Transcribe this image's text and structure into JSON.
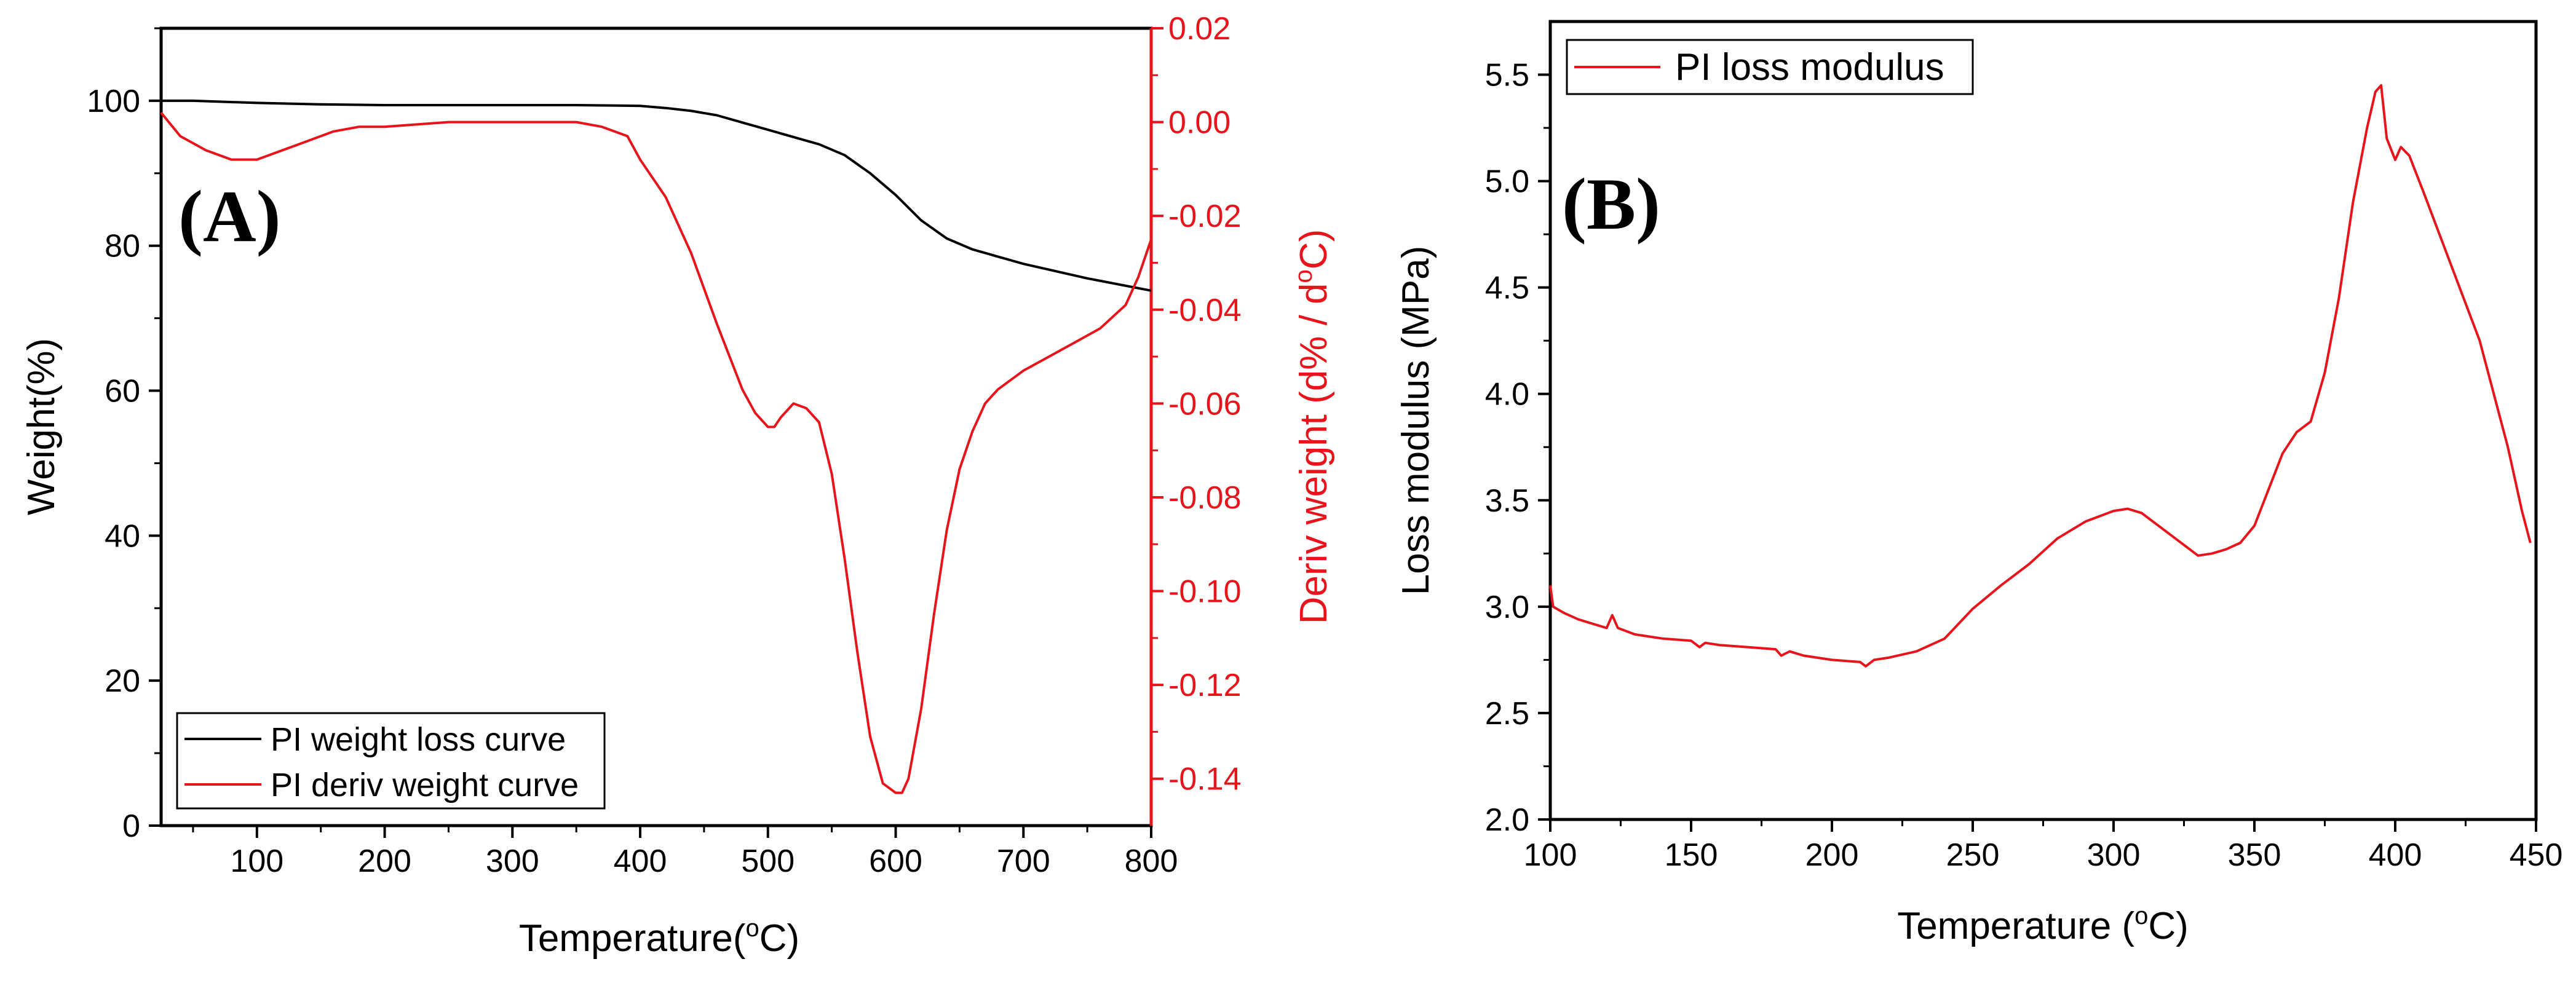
{
  "colors": {
    "weight": "#000000",
    "deriv": "#e8141b",
    "loss": "#e8141b",
    "axis_black": "#000000",
    "axis_red": "#e8141b"
  },
  "chart_data": [
    {
      "id": "A",
      "panel_label": "(A)",
      "type": "line",
      "xlabel": "Temperature(",
      "xlabel_sup": "o",
      "xlabel_suffix": "C)",
      "xlim": [
        25,
        800
      ],
      "xticks": [
        100,
        200,
        300,
        400,
        500,
        600,
        700,
        800
      ],
      "xtick_labels": [
        "100",
        "200",
        "300",
        "400",
        "500",
        "600",
        "700",
        "800"
      ],
      "ylabel": "Weight(%)",
      "ylim": [
        0,
        110
      ],
      "yticks": [
        0,
        20,
        40,
        60,
        80,
        100
      ],
      "ytick_labels": [
        "0",
        "20",
        "40",
        "60",
        "80",
        "100"
      ],
      "y2label": "Deriv weight (d% / d",
      "y2label_sup": "o",
      "y2label_suffix": "C)",
      "y2lim": [
        -0.15,
        0.02
      ],
      "y2ticks": [
        0.02,
        0,
        -0.02,
        -0.04,
        -0.06,
        -0.08,
        -0.1,
        -0.12,
        -0.14
      ],
      "y2tick_labels": [
        "0.02",
        "0.00",
        "-0.02",
        "-0.04",
        "-0.06",
        "-0.08",
        "-0.10",
        "-0.12",
        "-0.14"
      ],
      "legend_position": "bottom-left",
      "series": [
        {
          "name": "PI weight loss curve",
          "axis": "left",
          "color": "#000000",
          "x": [
            25,
            50,
            100,
            150,
            200,
            250,
            300,
            350,
            400,
            420,
            440,
            460,
            480,
            500,
            520,
            540,
            560,
            580,
            600,
            620,
            640,
            660,
            680,
            700,
            750,
            800
          ],
          "y": [
            100,
            100,
            99.7,
            99.5,
            99.4,
            99.4,
            99.4,
            99.4,
            99.3,
            99.0,
            98.6,
            98.0,
            97.0,
            96.0,
            95.0,
            94.0,
            92.5,
            90.0,
            87.0,
            83.5,
            81.0,
            79.5,
            78.5,
            77.5,
            75.5,
            73.8
          ]
        },
        {
          "name": "PI deriv weight curve",
          "axis": "right",
          "color": "#e8141b",
          "x": [
            25,
            40,
            60,
            80,
            100,
            120,
            140,
            160,
            180,
            200,
            250,
            300,
            350,
            370,
            390,
            400,
            420,
            440,
            460,
            480,
            490,
            500,
            505,
            510,
            520,
            530,
            540,
            550,
            560,
            570,
            580,
            590,
            600,
            605,
            610,
            620,
            630,
            640,
            650,
            660,
            670,
            680,
            690,
            700,
            720,
            740,
            760,
            780,
            790,
            800
          ],
          "y": [
            0.002,
            -0.003,
            -0.006,
            -0.008,
            -0.008,
            -0.006,
            -0.004,
            -0.002,
            -0.001,
            -0.001,
            0.0,
            0.0,
            0.0,
            -0.001,
            -0.003,
            -0.008,
            -0.016,
            -0.028,
            -0.043,
            -0.057,
            -0.062,
            -0.065,
            -0.065,
            -0.063,
            -0.06,
            -0.061,
            -0.064,
            -0.075,
            -0.093,
            -0.113,
            -0.131,
            -0.141,
            -0.143,
            -0.143,
            -0.14,
            -0.125,
            -0.105,
            -0.087,
            -0.074,
            -0.066,
            -0.06,
            -0.057,
            -0.055,
            -0.053,
            -0.05,
            -0.047,
            -0.044,
            -0.039,
            -0.033,
            -0.025
          ]
        }
      ]
    },
    {
      "id": "B",
      "panel_label": "(B)",
      "type": "line",
      "xlabel": "Temperature (",
      "xlabel_sup": "o",
      "xlabel_suffix": "C)",
      "xlim": [
        100,
        450
      ],
      "xticks": [
        100,
        150,
        200,
        250,
        300,
        350,
        400,
        450
      ],
      "xtick_labels": [
        "100",
        "150",
        "200",
        "250",
        "300",
        "350",
        "400",
        "450"
      ],
      "ylabel": "Loss modulus (MPa)",
      "ylim": [
        2.0,
        5.75
      ],
      "yticks": [
        2.0,
        2.5,
        3.0,
        3.5,
        4.0,
        4.5,
        5.0,
        5.5
      ],
      "ytick_labels": [
        "2.0",
        "2.5",
        "3.0",
        "3.5",
        "4.0",
        "4.5",
        "5.0",
        "5.5"
      ],
      "legend_position": "top-left",
      "series": [
        {
          "name": "PI loss modulus",
          "color": "#e8141b",
          "x": [
            100,
            101,
            105,
            110,
            115,
            120,
            122,
            124,
            130,
            140,
            150,
            153,
            155,
            160,
            170,
            180,
            182,
            185,
            190,
            200,
            210,
            212,
            215,
            220,
            230,
            240,
            250,
            260,
            270,
            280,
            290,
            300,
            305,
            310,
            320,
            330,
            335,
            340,
            345,
            350,
            355,
            360,
            365,
            370,
            375,
            380,
            385,
            390,
            393,
            395,
            397,
            400,
            402,
            405,
            410,
            420,
            430,
            440,
            445,
            448
          ],
          "y": [
            3.1,
            3.0,
            2.97,
            2.94,
            2.92,
            2.9,
            2.96,
            2.9,
            2.87,
            2.85,
            2.84,
            2.81,
            2.83,
            2.82,
            2.81,
            2.8,
            2.77,
            2.79,
            2.77,
            2.75,
            2.74,
            2.72,
            2.75,
            2.76,
            2.79,
            2.85,
            2.99,
            3.1,
            3.2,
            3.32,
            3.4,
            3.45,
            3.46,
            3.44,
            3.34,
            3.24,
            3.25,
            3.27,
            3.3,
            3.38,
            3.55,
            3.72,
            3.82,
            3.87,
            4.1,
            4.45,
            4.9,
            5.25,
            5.42,
            5.45,
            5.2,
            5.1,
            5.16,
            5.12,
            4.95,
            4.6,
            4.25,
            3.75,
            3.45,
            3.3
          ]
        }
      ]
    }
  ]
}
